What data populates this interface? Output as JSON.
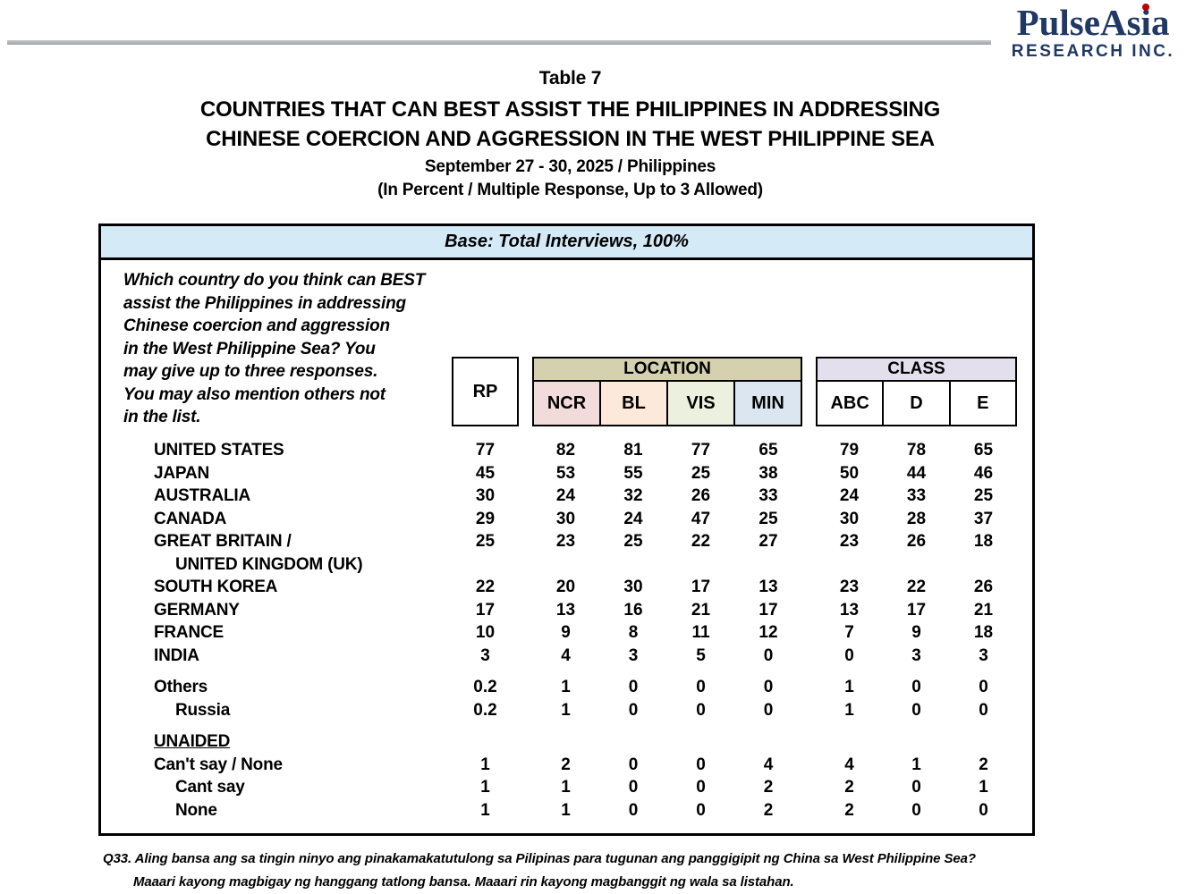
{
  "logo": {
    "brand_prefix": "PulseAs",
    "brand_i": "i",
    "brand_suffix": "a",
    "subtitle": "RESEARCH INC.",
    "brand_color": "#1F3864",
    "dot_color": "#C00000"
  },
  "titles": {
    "table_number": "Table 7",
    "line1": "COUNTRIES THAT CAN BEST ASSIST THE PHILIPPINES IN ADDRESSING",
    "line2": "CHINESE COERCION AND AGGRESSION IN THE WEST PHILIPPINE SEA",
    "date_line": "September 27 - 30, 2025 / Philippines",
    "note_line": "(In Percent / Multiple Response, Up to 3 Allowed)"
  },
  "question": {
    "lines": [
      "Which country do you think can BEST",
      "assist the Philippines in addressing",
      "Chinese coercion and aggression",
      "in the West Philippine Sea? You",
      "may  give up to three responses.",
      "You may also mention others not",
      "in the list."
    ]
  },
  "table": {
    "base_label": "Base: Total Interviews, 100%",
    "rp_label": "RP",
    "location_label": "LOCATION",
    "class_label": "CLASS",
    "location_cols": [
      {
        "label": "NCR",
        "color": "#F2DCDB"
      },
      {
        "label": "BL",
        "color": "#FDE9D9"
      },
      {
        "label": "VIS",
        "color": "#EBF1DE"
      },
      {
        "label": "MIN",
        "color": "#DCE6F1"
      }
    ],
    "class_cols": [
      {
        "label": "ABC",
        "color": "#FFFFFF"
      },
      {
        "label": "D",
        "color": "#FFFFFF"
      },
      {
        "label": "E",
        "color": "#FFFFFF"
      }
    ],
    "colors": {
      "base_band": "#D5EAF7",
      "location_band": "#D5D1AE",
      "class_band": "#E4DFEC",
      "border": "#000000"
    },
    "rows": [
      {
        "label": "UNITED STATES",
        "values": [
          "77",
          "82",
          "81",
          "77",
          "65",
          "79",
          "78",
          "65"
        ]
      },
      {
        "label": "JAPAN",
        "values": [
          "45",
          "53",
          "55",
          "25",
          "38",
          "50",
          "44",
          "46"
        ]
      },
      {
        "label": "AUSTRALIA",
        "values": [
          "30",
          "24",
          "32",
          "26",
          "33",
          "24",
          "33",
          "25"
        ]
      },
      {
        "label": "CANADA",
        "values": [
          "29",
          "30",
          "24",
          "47",
          "25",
          "30",
          "28",
          "37"
        ]
      },
      {
        "label": "GREAT BRITAIN /",
        "label2": "UNITED KINGDOM (UK)",
        "values": [
          "25",
          "23",
          "25",
          "22",
          "27",
          "23",
          "26",
          "18"
        ]
      },
      {
        "label": "SOUTH KOREA",
        "values": [
          "22",
          "20",
          "30",
          "17",
          "13",
          "23",
          "22",
          "26"
        ]
      },
      {
        "label": "GERMANY",
        "values": [
          "17",
          "13",
          "16",
          "21",
          "17",
          "13",
          "17",
          "21"
        ]
      },
      {
        "label": "FRANCE",
        "values": [
          "10",
          "9",
          "8",
          "11",
          "12",
          "7",
          "9",
          "18"
        ]
      },
      {
        "label": "INDIA",
        "values": [
          "3",
          "4",
          "3",
          "5",
          "0",
          "0",
          "3",
          "3"
        ]
      },
      {
        "label": "Others",
        "gap_before": true,
        "values": [
          "0.2",
          "1",
          "0",
          "0",
          "0",
          "1",
          "0",
          "0"
        ]
      },
      {
        "label": "Russia",
        "indent": true,
        "values": [
          "0.2",
          "1",
          "0",
          "0",
          "0",
          "1",
          "0",
          "0"
        ]
      },
      {
        "label": "UNAIDED",
        "gap_before": true,
        "underline": true,
        "values": null
      },
      {
        "label": "Can't say / None",
        "values": [
          "1",
          "2",
          "0",
          "0",
          "4",
          "4",
          "1",
          "2"
        ]
      },
      {
        "label": "Cant say",
        "indent": true,
        "values": [
          "1",
          "1",
          "0",
          "0",
          "2",
          "2",
          "0",
          "1"
        ]
      },
      {
        "label": "None",
        "indent": true,
        "values": [
          "1",
          "1",
          "0",
          "0",
          "2",
          "2",
          "0",
          "0"
        ]
      }
    ]
  },
  "footer": {
    "line1": "Q33. Aling bansa ang sa tingin ninyo ang pinakamakatutulong sa Pilipinas para tugunan ang panggigipit ng China sa West Philippine Sea?",
    "line2": "Maaari kayong magbigay ng hanggang tatlong bansa. Maaari rin kayong magbanggit ng wala sa listahan."
  }
}
